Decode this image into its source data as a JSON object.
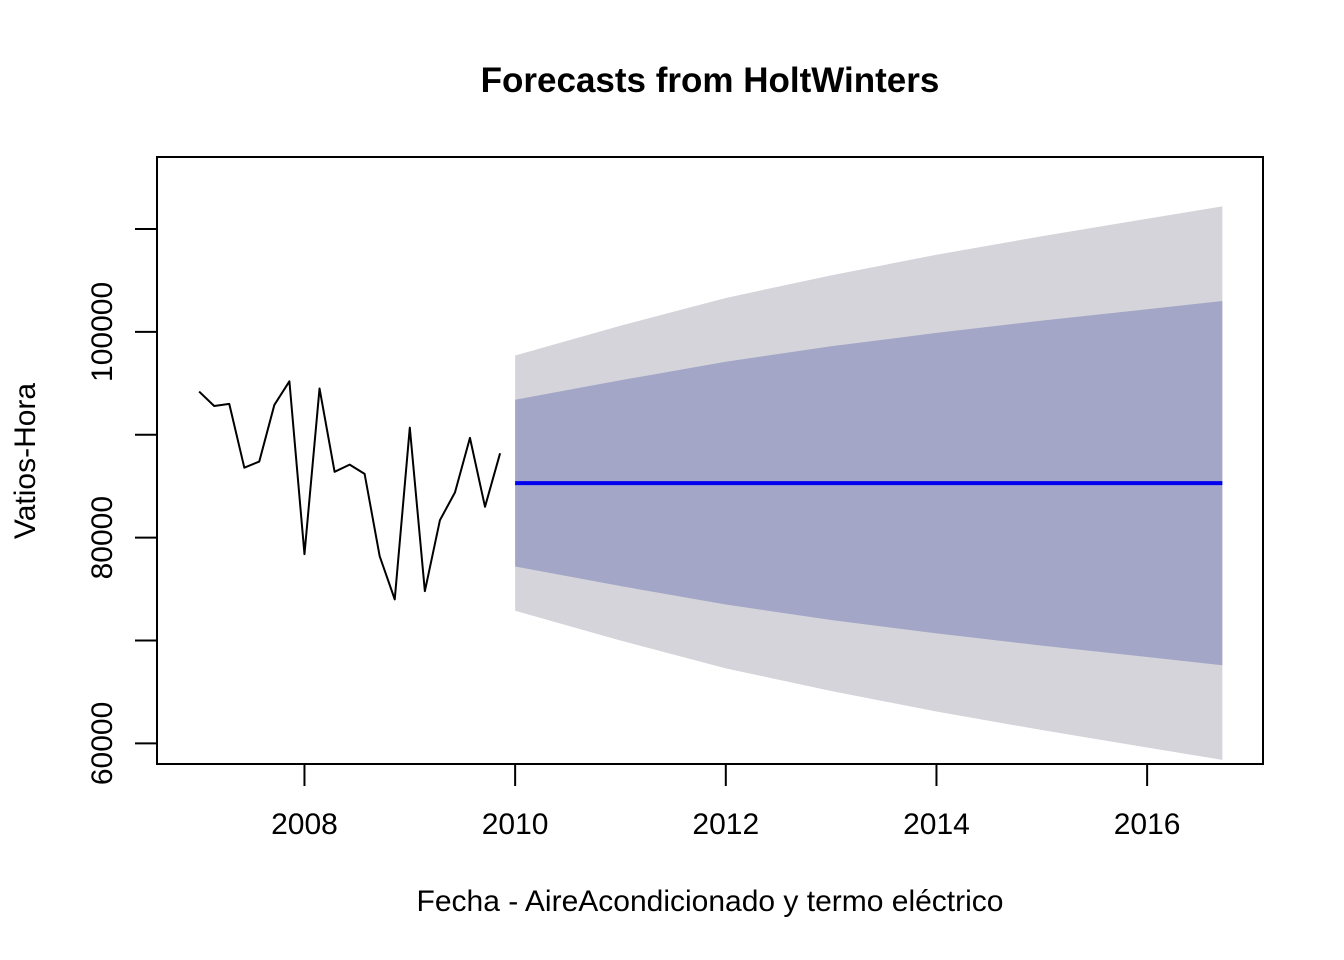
{
  "chart_data": {
    "type": "line",
    "title": "Forecasts from HoltWinters",
    "xlabel": "Fecha - AireAcondicionado y termo eléctrico",
    "ylabel": "Vatios-Hora",
    "xlim": [
      2006.6,
      2017.1
    ],
    "ylim": [
      58000,
      117000
    ],
    "x_ticks": [
      2008,
      2010,
      2012,
      2014,
      2016
    ],
    "x_tick_labels": [
      "2008",
      "2010",
      "2012",
      "2014",
      "2016"
    ],
    "y_ticks": [
      60000,
      70000,
      80000,
      90000,
      100000,
      110000
    ],
    "y_tick_labels": [
      "60000",
      "",
      "80000",
      "",
      "100000",
      ""
    ],
    "grid": false,
    "colors": {
      "observed": "#000000",
      "forecast": "#0000ee",
      "band_95": "#d4d4da",
      "band_80": "#a3a6c6"
    },
    "series": [
      {
        "role": "observed",
        "x": [
          2007.0,
          2007.143,
          2007.286,
          2007.429,
          2007.571,
          2007.714,
          2007.857,
          2008.0,
          2008.143,
          2008.286,
          2008.429,
          2008.571,
          2008.714,
          2008.857,
          2009.0,
          2009.143,
          2009.286,
          2009.429,
          2009.571,
          2009.714,
          2009.857
        ],
        "values": [
          94200,
          92800,
          93000,
          86800,
          87400,
          92900,
          95200,
          78400,
          94500,
          86400,
          87100,
          86200,
          78200,
          74000,
          90700,
          74800,
          81700,
          84400,
          89700,
          83000,
          88200
        ]
      },
      {
        "role": "forecast",
        "x": [
          2010.0,
          2016.714
        ],
        "values": [
          85300,
          85300
        ]
      },
      {
        "role": "interval_95",
        "x": [
          2010.0,
          2011.0,
          2012.0,
          2013.0,
          2014.0,
          2015.0,
          2016.0,
          2016.714
        ],
        "lower": [
          72900,
          70000,
          67300,
          65100,
          63100,
          61300,
          59600,
          58400
        ],
        "upper": [
          97700,
          100600,
          103300,
          105500,
          107500,
          109300,
          111000,
          112200
        ]
      },
      {
        "role": "interval_80",
        "x": [
          2010.0,
          2011.0,
          2012.0,
          2013.0,
          2014.0,
          2015.0,
          2016.0,
          2016.714
        ],
        "lower": [
          77200,
          75300,
          73500,
          72000,
          70700,
          69500,
          68400,
          67600
        ],
        "upper": [
          93400,
          95300,
          97100,
          98600,
          99900,
          101100,
          102200,
          103000
        ]
      }
    ]
  }
}
